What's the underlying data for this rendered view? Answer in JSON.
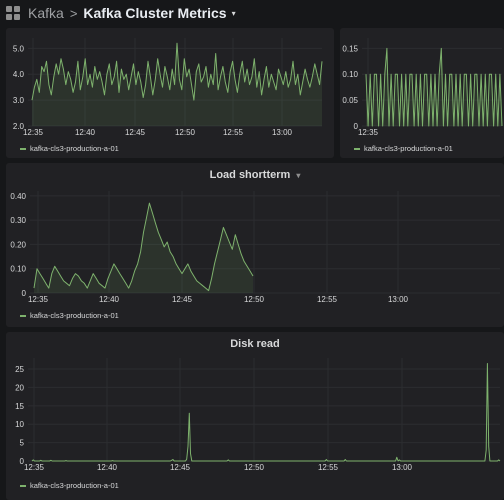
{
  "breadcrumb": {
    "parent": "Kafka",
    "separator": ">",
    "title": "Kafka Cluster Metrics",
    "caret": "▾"
  },
  "series_color": "#7eb26d",
  "series_fill": "rgba(126,178,109,0.12)",
  "grid_color": "#2c2d30",
  "panels": {
    "top_left": {
      "legend": "kafka-cls3-production-a-01"
    },
    "top_right": {
      "legend": "kafka-cls3-production-a-01"
    },
    "load": {
      "title": "Load shortterm",
      "title_caret": "▾",
      "legend": "kafka-cls3-production-a-01"
    },
    "disk": {
      "title": "Disk read",
      "legend": "kafka-cls3-production-a-01"
    }
  },
  "chart_data": [
    {
      "type": "line",
      "title": "",
      "x_ticks": [
        "12:35",
        "12:40",
        "12:45",
        "12:50",
        "12:55",
        "13:00"
      ],
      "y_ticks": [
        "2.0",
        "3.0",
        "4.0",
        "5.0"
      ],
      "ylim": [
        2.0,
        5.4
      ],
      "series": [
        {
          "name": "kafka-cls3-production-a-01",
          "values": [
            3.0,
            3.5,
            3.8,
            3.3,
            4.3,
            4.1,
            4.5,
            3.6,
            3.2,
            3.9,
            4.4,
            4.0,
            4.6,
            4.2,
            3.6,
            4.1,
            3.8,
            3.3,
            3.7,
            4.5,
            3.4,
            3.9,
            4.6,
            3.6,
            4.0,
            3.5,
            4.3,
            3.8,
            4.1,
            3.7,
            3.2,
            4.0,
            4.4,
            3.6,
            3.9,
            4.5,
            3.3,
            4.2,
            3.8,
            4.0,
            3.4,
            3.9,
            4.4,
            3.6,
            4.1,
            3.7,
            3.1,
            3.6,
            4.5,
            3.9,
            3.2,
            3.8,
            4.6,
            4.0,
            3.5,
            4.3,
            3.9,
            3.4,
            4.2,
            3.6,
            5.2,
            3.8,
            3.4,
            4.6,
            3.9,
            4.2,
            3.6,
            3.0,
            4.1,
            4.4,
            3.7,
            3.9,
            4.3,
            3.5,
            4.0,
            3.6,
            4.8,
            3.4,
            3.9,
            4.3,
            3.7,
            3.3,
            4.1,
            4.5,
            3.8,
            3.3,
            4.0,
            4.5,
            3.7,
            4.2,
            3.6,
            3.9,
            4.6,
            3.5,
            4.1,
            3.2,
            3.8,
            4.3,
            3.5,
            4.0,
            3.7,
            3.4,
            4.2,
            3.9,
            3.6,
            4.1,
            3.5,
            3.8,
            4.5,
            3.6,
            4.0,
            3.2,
            3.7,
            4.2,
            3.8,
            3.5,
            3.9,
            4.4,
            4.0,
            3.6,
            4.5
          ]
        }
      ]
    },
    {
      "type": "line",
      "title": "",
      "x_ticks": [
        "12:35"
      ],
      "y_ticks": [
        "0",
        "0.05",
        "0.10",
        "0.15"
      ],
      "ylim": [
        0,
        0.17
      ],
      "series": [
        {
          "name": "kafka-cls3-production-a-01",
          "values": [
            0.1,
            0.0,
            0.1,
            0.0,
            0.1,
            0.1,
            0.0,
            0.1,
            0.0,
            0.1,
            0.15,
            0.0,
            0.1,
            0.0,
            0.1,
            0.1,
            0.0,
            0.1,
            0.0,
            0.1,
            0.0,
            0.1,
            0.1,
            0.0,
            0.1,
            0.0,
            0.1,
            0.0,
            0.1,
            0.1,
            0.0,
            0.1,
            0.0,
            0.1,
            0.0,
            0.1,
            0.15,
            0.0,
            0.1,
            0.0,
            0.1,
            0.1,
            0.0,
            0.1,
            0.0,
            0.1,
            0.0,
            0.1,
            0.1,
            0.0,
            0.1,
            0.0,
            0.1,
            0.1,
            0.0,
            0.1,
            0.0,
            0.1,
            0.0,
            0.1,
            0.1,
            0.0,
            0.1,
            0.0,
            0.1,
            0.0
          ]
        }
      ]
    },
    {
      "type": "area",
      "title": "Load shortterm",
      "x_ticks": [
        "12:35",
        "12:40",
        "12:45",
        "12:50",
        "12:55",
        "13:00"
      ],
      "y_ticks": [
        "0",
        "0.10",
        "0.20",
        "0.30",
        "0.40"
      ],
      "ylim": [
        0,
        0.42
      ],
      "series": [
        {
          "name": "kafka-cls3-production-a-01",
          "values": [
            0.02,
            0.1,
            0.08,
            0.06,
            0.04,
            0.02,
            0.08,
            0.11,
            0.09,
            0.07,
            0.05,
            0.04,
            0.03,
            0.06,
            0.08,
            0.07,
            0.05,
            0.04,
            0.02,
            0.05,
            0.08,
            0.06,
            0.04,
            0.03,
            0.02,
            0.06,
            0.09,
            0.12,
            0.1,
            0.08,
            0.06,
            0.04,
            0.02,
            0.05,
            0.09,
            0.12,
            0.17,
            0.25,
            0.31,
            0.37,
            0.33,
            0.29,
            0.25,
            0.22,
            0.19,
            0.21,
            0.17,
            0.15,
            0.12,
            0.1,
            0.08,
            0.1,
            0.12,
            0.09,
            0.07,
            0.05,
            0.04,
            0.03,
            0.02,
            0.01,
            0.06,
            0.12,
            0.17,
            0.22,
            0.27,
            0.24,
            0.21,
            0.18,
            0.24,
            0.2,
            0.16,
            0.13,
            0.11,
            0.09,
            0.07
          ]
        }
      ]
    },
    {
      "type": "line",
      "title": "Disk read",
      "x_ticks": [
        "12:35",
        "12:40",
        "12:45",
        "12:50",
        "12:55",
        "13:00"
      ],
      "y_ticks": [
        "0",
        "5",
        "10",
        "15",
        "20",
        "25"
      ],
      "ylim": [
        0,
        28
      ],
      "series": [
        {
          "name": "kafka-cls3-production-a-01",
          "values": [
            0,
            0.3,
            0,
            0,
            0,
            0,
            0,
            0.2,
            0,
            0,
            0,
            0,
            0,
            0,
            0,
            0.2,
            0,
            0,
            0,
            0,
            0,
            0,
            0,
            0,
            0,
            0,
            0,
            0.1,
            0,
            0,
            0,
            0,
            0,
            0,
            0,
            0,
            0,
            0,
            0,
            0,
            0,
            0,
            0,
            0,
            0,
            0,
            0,
            0,
            0,
            0,
            0,
            0,
            0,
            0,
            0,
            0,
            0,
            0,
            0,
            0,
            0,
            0,
            0,
            0,
            0.1,
            0,
            0,
            0,
            0,
            0,
            0,
            0,
            0,
            0,
            0,
            0,
            0,
            0,
            0,
            0,
            0,
            0,
            0,
            0,
            0,
            0,
            0,
            0,
            0,
            0,
            0,
            0,
            0,
            0,
            0,
            0,
            0,
            0,
            0,
            0,
            0,
            0,
            0,
            0,
            0,
            0,
            0,
            0,
            0,
            0,
            0,
            0.2,
            0.4,
            0,
            0,
            0,
            0,
            0,
            0,
            0,
            0,
            0,
            0,
            0.5,
            4,
            13,
            2,
            0,
            0,
            0,
            0,
            0,
            0,
            0,
            0,
            0,
            0,
            0,
            0,
            0,
            0,
            0,
            0,
            0,
            0,
            0,
            0,
            0,
            0,
            0,
            0,
            0,
            0,
            0,
            0,
            0,
            0.3,
            0,
            0,
            0,
            0,
            0,
            0,
            0,
            0,
            0,
            0,
            0,
            0,
            0,
            0,
            0,
            0,
            0,
            0,
            0,
            0,
            0,
            0,
            0,
            0,
            0,
            0,
            0,
            0,
            0,
            0,
            0,
            0,
            0,
            0,
            0,
            0,
            0,
            0,
            0,
            0,
            0,
            0,
            0,
            0,
            0,
            0,
            0,
            0,
            0,
            0,
            0,
            0,
            0,
            0,
            0,
            0,
            0,
            0,
            0,
            0,
            0,
            0,
            0,
            0,
            0,
            0,
            0,
            0,
            0,
            0,
            0,
            0,
            0,
            0,
            0,
            0,
            0,
            0.4,
            0,
            0,
            0,
            0,
            0,
            0,
            0,
            0,
            0,
            0,
            0,
            0,
            0,
            0,
            0.4,
            0,
            0,
            0,
            0,
            0,
            0,
            0,
            0,
            0,
            0,
            0,
            0,
            0,
            0,
            0,
            0,
            0,
            0,
            0,
            0,
            0,
            0,
            0,
            0,
            0,
            0,
            0,
            0,
            0,
            0,
            0,
            0,
            0,
            0,
            0,
            0,
            0,
            0,
            0,
            0,
            1,
            0,
            0.3,
            0,
            0,
            0,
            0,
            0,
            0,
            0,
            0,
            0,
            0,
            0,
            0,
            0,
            0,
            0,
            0,
            0,
            0,
            0,
            0,
            0,
            0,
            0,
            0,
            0,
            0,
            0,
            0,
            0,
            0,
            0,
            0,
            0,
            0,
            0,
            0,
            0,
            0,
            0,
            0,
            0,
            0,
            0,
            0,
            0,
            0,
            0,
            0,
            0,
            0,
            0,
            0,
            0,
            0,
            0,
            0,
            0,
            0,
            0,
            0,
            0,
            0,
            0,
            0,
            0,
            0,
            0,
            0,
            3,
            26.5,
            4,
            0,
            0,
            0,
            0,
            0,
            0,
            0,
            0.3,
            0
          ]
        }
      ]
    }
  ]
}
